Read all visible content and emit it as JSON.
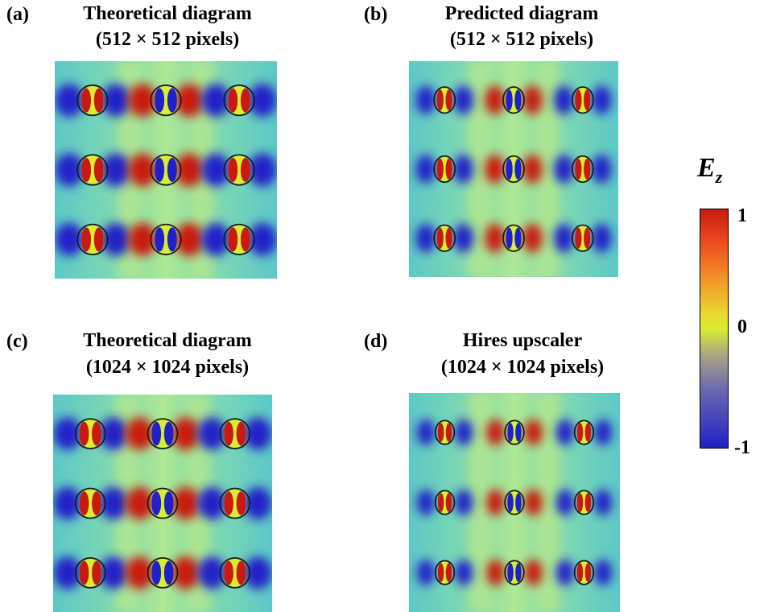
{
  "panels": [
    {
      "label": "(a)",
      "title_line1": "Theoretical diagram",
      "title_line2": "(512 × 512 pixels)"
    },
    {
      "label": "(b)",
      "title_line1": "Predicted diagram",
      "title_line2": "(512 × 512 pixels)"
    },
    {
      "label": "(c)",
      "title_line1": "Theoretical diagram",
      "title_line2": "(1024 × 1024 pixels)"
    },
    {
      "label": "(d)",
      "title_line1": "Hires upscaler",
      "title_line2": "(1024 × 1024 pixels)"
    }
  ],
  "colorbar": {
    "symbol": "E",
    "subscript": "z",
    "max_label": "1",
    "mid_label": "0",
    "min_label": "-1",
    "colors": {
      "max": "#c81a10",
      "mid": "#d8ee30",
      "min": "#2020c8",
      "background": "#64d2c0"
    }
  }
}
